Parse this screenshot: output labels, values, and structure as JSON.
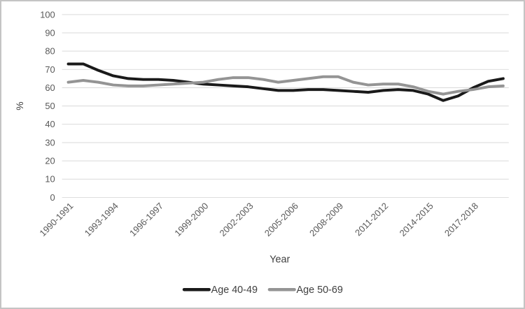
{
  "figure": {
    "background": "#ffffff",
    "border_color": "#c4c4c4"
  },
  "chart_data": {
    "type": "line",
    "title": "",
    "xlabel": "Year",
    "ylabel": "%",
    "ylim": [
      0,
      100
    ],
    "yticks": [
      0,
      10,
      20,
      30,
      40,
      50,
      60,
      70,
      80,
      90,
      100
    ],
    "grid": true,
    "legend_position": "bottom",
    "categories": [
      "1990-1991",
      "1991-1992",
      "1992-1993",
      "1993-1994",
      "1994-1995",
      "1995-1996",
      "1996-1997",
      "1997-1998",
      "1998-1999",
      "1999-2000",
      "2000-2001",
      "2001-2002",
      "2002-2003",
      "2003-2004",
      "2004-2005",
      "2005-2006",
      "2006-2007",
      "2007-2008",
      "2008-2009",
      "2009-2010",
      "2010-2011",
      "2011-2012",
      "2012-2013",
      "2013-2014",
      "2014-2015",
      "2015-2016",
      "2016-2017",
      "2017-2018",
      "2018-2019",
      "2019-2020"
    ],
    "x_tick_indices": [
      0,
      3,
      6,
      9,
      12,
      15,
      18,
      21,
      24,
      27
    ],
    "x_tick_labels": [
      "1990-1991",
      "1993-1994",
      "1996-1997",
      "1999-2000",
      "2002-2003",
      "2005-2006",
      "2008-2009",
      "2011-2012",
      "2014-2015",
      "2017-2018"
    ],
    "series": [
      {
        "name": "Age 40-49",
        "color": "#1a1a1a",
        "values": [
          73,
          73,
          69.5,
          66.5,
          65,
          64.5,
          64.5,
          64,
          63,
          62,
          61.5,
          61,
          60.5,
          59.5,
          58.5,
          58.5,
          59,
          59,
          58.5,
          58,
          57.5,
          58.5,
          59,
          58.5,
          56.5,
          53,
          55.5,
          60,
          63.5,
          65
        ]
      },
      {
        "name": "Age 50-69",
        "color": "#949494",
        "values": [
          63,
          64,
          63,
          61.5,
          61,
          61,
          61.5,
          62,
          62.5,
          63,
          64.5,
          65.5,
          65.5,
          64.5,
          63,
          64,
          65,
          66,
          66,
          63,
          61.5,
          62,
          62,
          60.5,
          58,
          56.5,
          58,
          59,
          60.5,
          61
        ]
      }
    ],
    "colors": {
      "gridline": "#d9d9d9",
      "tick_text": "#595959",
      "axis_title_text": "#404040",
      "legend_text": "#404040"
    }
  }
}
